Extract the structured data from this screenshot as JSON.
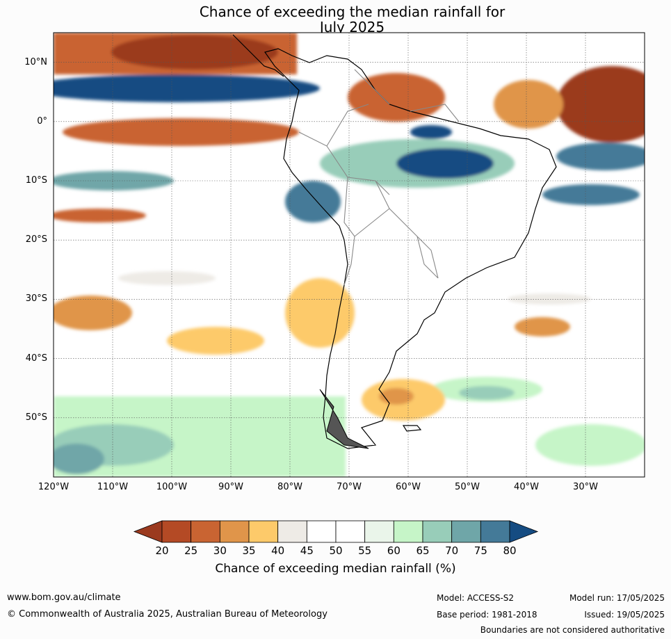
{
  "title": {
    "line1": "Chance of exceeding the median rainfall for",
    "line2": "July 2025"
  },
  "axes": {
    "lat_labels": [
      "10°N",
      "0°",
      "10°S",
      "20°S",
      "30°S",
      "40°S",
      "50°S"
    ],
    "lat_values": [
      10,
      0,
      -10,
      -20,
      -30,
      -40,
      -50
    ],
    "lon_labels": [
      "120°W",
      "110°W",
      "100°W",
      "90°W",
      "80°W",
      "70°W",
      "60°W",
      "50°W",
      "40°W",
      "30°W"
    ],
    "lon_values": [
      -120,
      -110,
      -100,
      -90,
      -80,
      -70,
      -60,
      -50,
      -40,
      -30
    ],
    "lon_range": [
      -120,
      -20
    ],
    "lat_range": [
      -60,
      15
    ],
    "grid": true
  },
  "colorbar": {
    "ticks": [
      "20",
      "25",
      "30",
      "35",
      "40",
      "45",
      "50",
      "55",
      "60",
      "65",
      "70",
      "75",
      "80"
    ],
    "colors": [
      "#9b3a1f",
      "#b44a25",
      "#c96432",
      "#e0954a",
      "#fdca6a",
      "#eeebe6",
      "#ffffff",
      "#ffffff",
      "#eaf5ea",
      "#c6f5c8",
      "#98cdb9",
      "#6fa6a8",
      "#447a98",
      "#154c82"
    ],
    "label": "Chance of exceeding median rainfall (%)",
    "extend": "both"
  },
  "footer": {
    "website": "www.bom.gov.au/climate",
    "copyright": "© Commonwealth of Australia 2025, Australian Bureau of Meteorology",
    "model": "Model: ACCESS-S2",
    "base_period": "Base period: 1981-2018",
    "model_run": "Model run: 17/05/2025",
    "issued": "Issued: 19/05/2025",
    "disclaimer": "Boundaries are not considered authoritative"
  }
}
